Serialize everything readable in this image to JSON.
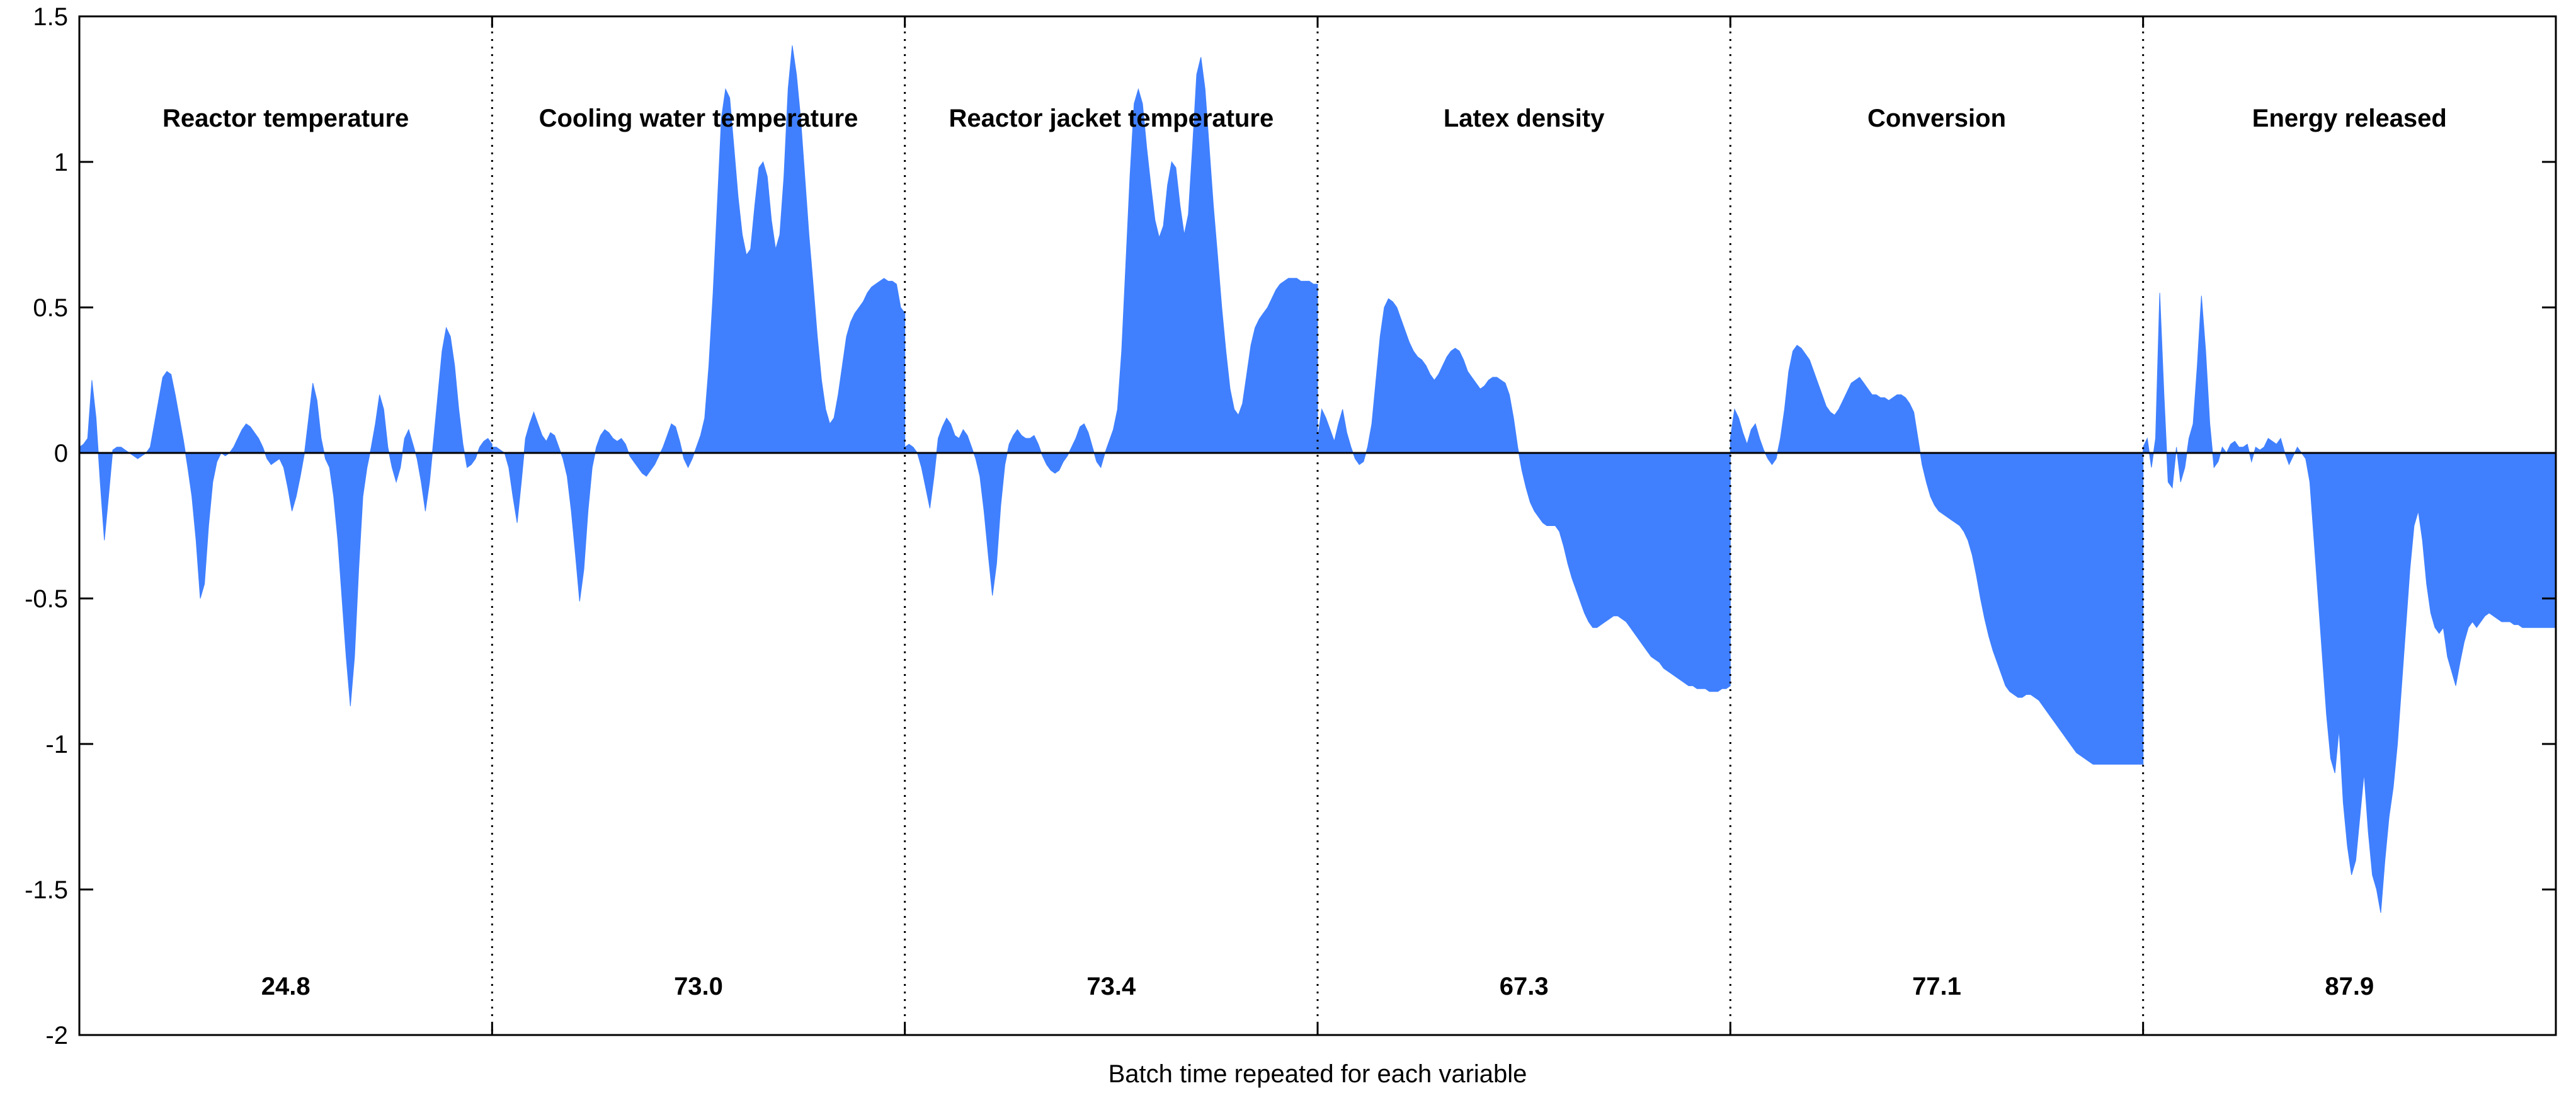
{
  "chart_data": {
    "type": "area",
    "title": "",
    "xlabel": "Batch time repeated for each variable",
    "ylabel": "",
    "ylim": [
      -2,
      1.5
    ],
    "yticks": [
      1.5,
      1,
      0.5,
      0,
      -0.5,
      -1,
      -1.5,
      -2
    ],
    "ytick_labels": [
      "1.5",
      "1",
      "0.5",
      "0",
      "-0.5",
      "-1",
      "-1.5",
      "-2"
    ],
    "grid": false,
    "fill_color": "#4080FF",
    "x_samples_per_panel": 100,
    "panels": [
      {
        "name": "Reactor temperature",
        "stat": "24.8",
        "values": [
          0.02,
          0.03,
          0.05,
          0.25,
          0.12,
          -0.1,
          -0.3,
          -0.15,
          0.01,
          0.02,
          0.02,
          0.01,
          0.0,
          -0.01,
          -0.02,
          -0.01,
          0.0,
          0.02,
          0.1,
          0.18,
          0.26,
          0.28,
          0.27,
          0.2,
          0.12,
          0.04,
          -0.05,
          -0.15,
          -0.3,
          -0.5,
          -0.45,
          -0.25,
          -0.1,
          -0.03,
          0.0,
          -0.01,
          0.0,
          0.02,
          0.05,
          0.08,
          0.1,
          0.09,
          0.07,
          0.05,
          0.02,
          -0.02,
          -0.04,
          -0.03,
          -0.02,
          -0.05,
          -0.12,
          -0.2,
          -0.15,
          -0.08,
          0.0,
          0.12,
          0.24,
          0.18,
          0.05,
          -0.02,
          -0.05,
          -0.15,
          -0.3,
          -0.5,
          -0.7,
          -0.87,
          -0.7,
          -0.4,
          -0.15,
          -0.05,
          0.02,
          0.1,
          0.2,
          0.15,
          0.02,
          -0.05,
          -0.1,
          -0.05,
          0.05,
          0.08,
          0.03,
          -0.02,
          -0.1,
          -0.2,
          -0.1,
          0.05,
          0.2,
          0.35,
          0.43,
          0.4,
          0.3,
          0.15,
          0.03,
          -0.05,
          -0.04,
          -0.02,
          0.02,
          0.04,
          0.05,
          0.03
        ]
      },
      {
        "name": "Cooling water temperature",
        "stat": "73.0",
        "values": [
          0.02,
          0.02,
          0.01,
          0.0,
          -0.05,
          -0.15,
          -0.24,
          -0.1,
          0.05,
          0.1,
          0.14,
          0.1,
          0.06,
          0.04,
          0.07,
          0.06,
          0.02,
          -0.02,
          -0.08,
          -0.2,
          -0.35,
          -0.51,
          -0.4,
          -0.2,
          -0.05,
          0.02,
          0.06,
          0.08,
          0.07,
          0.05,
          0.04,
          0.05,
          0.03,
          -0.01,
          -0.03,
          -0.05,
          -0.07,
          -0.08,
          -0.06,
          -0.04,
          -0.01,
          0.02,
          0.06,
          0.1,
          0.09,
          0.04,
          -0.02,
          -0.05,
          -0.02,
          0.02,
          0.06,
          0.12,
          0.3,
          0.55,
          0.85,
          1.15,
          1.25,
          1.22,
          1.05,
          0.88,
          0.75,
          0.68,
          0.7,
          0.85,
          0.98,
          1.0,
          0.95,
          0.8,
          0.7,
          0.75,
          0.95,
          1.25,
          1.4,
          1.3,
          1.15,
          0.95,
          0.75,
          0.58,
          0.4,
          0.25,
          0.15,
          0.1,
          0.12,
          0.2,
          0.3,
          0.4,
          0.45,
          0.48,
          0.5,
          0.52,
          0.55,
          0.57,
          0.58,
          0.59,
          0.6,
          0.59,
          0.59,
          0.58,
          0.5,
          0.48
        ]
      },
      {
        "name": "Reactor jacket temperature",
        "stat": "73.4",
        "values": [
          0.02,
          0.03,
          0.02,
          0.0,
          -0.05,
          -0.12,
          -0.19,
          -0.08,
          0.05,
          0.09,
          0.12,
          0.1,
          0.06,
          0.05,
          0.08,
          0.06,
          0.02,
          -0.02,
          -0.08,
          -0.2,
          -0.35,
          -0.49,
          -0.38,
          -0.18,
          -0.04,
          0.03,
          0.06,
          0.08,
          0.06,
          0.05,
          0.05,
          0.06,
          0.03,
          -0.01,
          -0.04,
          -0.06,
          -0.07,
          -0.06,
          -0.03,
          -0.01,
          0.02,
          0.05,
          0.09,
          0.1,
          0.07,
          0.02,
          -0.03,
          -0.05,
          0.0,
          0.04,
          0.08,
          0.15,
          0.35,
          0.65,
          0.95,
          1.2,
          1.25,
          1.2,
          1.05,
          0.92,
          0.8,
          0.74,
          0.78,
          0.92,
          1.0,
          0.98,
          0.85,
          0.75,
          0.82,
          1.05,
          1.3,
          1.36,
          1.25,
          1.05,
          0.85,
          0.68,
          0.5,
          0.35,
          0.22,
          0.15,
          0.13,
          0.17,
          0.27,
          0.37,
          0.43,
          0.46,
          0.48,
          0.5,
          0.53,
          0.56,
          0.58,
          0.59,
          0.6,
          0.6,
          0.6,
          0.59,
          0.59,
          0.59,
          0.58,
          0.58
        ]
      },
      {
        "name": "Latex density",
        "stat": "67.3",
        "values": [
          0.05,
          0.15,
          0.12,
          0.08,
          0.04,
          0.1,
          0.15,
          0.07,
          0.02,
          -0.02,
          -0.04,
          -0.03,
          0.02,
          0.1,
          0.25,
          0.4,
          0.5,
          0.53,
          0.52,
          0.5,
          0.46,
          0.42,
          0.38,
          0.35,
          0.33,
          0.32,
          0.3,
          0.27,
          0.25,
          0.27,
          0.3,
          0.33,
          0.35,
          0.36,
          0.35,
          0.32,
          0.28,
          0.26,
          0.24,
          0.22,
          0.23,
          0.25,
          0.26,
          0.26,
          0.25,
          0.24,
          0.2,
          0.12,
          0.02,
          -0.06,
          -0.12,
          -0.17,
          -0.2,
          -0.22,
          -0.24,
          -0.25,
          -0.25,
          -0.25,
          -0.27,
          -0.32,
          -0.38,
          -0.43,
          -0.47,
          -0.51,
          -0.55,
          -0.58,
          -0.6,
          -0.6,
          -0.59,
          -0.58,
          -0.57,
          -0.56,
          -0.56,
          -0.57,
          -0.58,
          -0.6,
          -0.62,
          -0.64,
          -0.66,
          -0.68,
          -0.7,
          -0.71,
          -0.72,
          -0.74,
          -0.75,
          -0.76,
          -0.77,
          -0.78,
          -0.79,
          -0.8,
          -0.8,
          -0.81,
          -0.81,
          -0.81,
          -0.82,
          -0.82,
          -0.82,
          -0.81,
          -0.81,
          -0.8
        ]
      },
      {
        "name": "Conversion",
        "stat": "77.1",
        "values": [
          0.05,
          0.15,
          0.12,
          0.07,
          0.03,
          0.08,
          0.1,
          0.05,
          0.01,
          -0.02,
          -0.04,
          -0.02,
          0.05,
          0.15,
          0.28,
          0.35,
          0.37,
          0.36,
          0.34,
          0.32,
          0.28,
          0.24,
          0.2,
          0.16,
          0.14,
          0.13,
          0.15,
          0.18,
          0.21,
          0.24,
          0.25,
          0.26,
          0.24,
          0.22,
          0.2,
          0.2,
          0.19,
          0.19,
          0.18,
          0.19,
          0.2,
          0.2,
          0.19,
          0.17,
          0.14,
          0.05,
          -0.04,
          -0.1,
          -0.15,
          -0.18,
          -0.2,
          -0.21,
          -0.22,
          -0.23,
          -0.24,
          -0.25,
          -0.27,
          -0.3,
          -0.35,
          -0.42,
          -0.5,
          -0.57,
          -0.63,
          -0.68,
          -0.72,
          -0.76,
          -0.8,
          -0.82,
          -0.83,
          -0.84,
          -0.84,
          -0.83,
          -0.83,
          -0.84,
          -0.85,
          -0.87,
          -0.89,
          -0.91,
          -0.93,
          -0.95,
          -0.97,
          -0.99,
          -1.01,
          -1.03,
          -1.04,
          -1.05,
          -1.06,
          -1.07,
          -1.07,
          -1.07,
          -1.07,
          -1.07,
          -1.07,
          -1.07,
          -1.07,
          -1.07,
          -1.07,
          -1.07,
          -1.07,
          -1.07
        ]
      },
      {
        "name": "Energy released",
        "stat": "87.9",
        "values": [
          0.02,
          0.05,
          -0.05,
          0.05,
          0.55,
          0.2,
          -0.1,
          -0.12,
          0.02,
          -0.1,
          -0.05,
          0.05,
          0.1,
          0.3,
          0.54,
          0.35,
          0.1,
          -0.05,
          -0.03,
          0.02,
          0.0,
          0.03,
          0.04,
          0.02,
          0.02,
          0.03,
          -0.03,
          0.02,
          0.01,
          0.02,
          0.05,
          0.04,
          0.03,
          0.05,
          0.0,
          -0.04,
          -0.01,
          0.02,
          0.0,
          -0.02,
          -0.1,
          -0.3,
          -0.5,
          -0.7,
          -0.9,
          -1.05,
          -1.1,
          -0.95,
          -1.2,
          -1.35,
          -1.45,
          -1.4,
          -1.25,
          -1.1,
          -1.3,
          -1.45,
          -1.5,
          -1.58,
          -1.4,
          -1.25,
          -1.15,
          -1.0,
          -0.8,
          -0.6,
          -0.4,
          -0.25,
          -0.2,
          -0.3,
          -0.45,
          -0.55,
          -0.6,
          -0.62,
          -0.6,
          -0.7,
          -0.75,
          -0.8,
          -0.72,
          -0.65,
          -0.6,
          -0.58,
          -0.6,
          -0.58,
          -0.56,
          -0.55,
          -0.56,
          -0.57,
          -0.58,
          -0.58,
          -0.58,
          -0.59,
          -0.59,
          -0.6,
          -0.6,
          -0.6,
          -0.6,
          -0.6,
          -0.6,
          -0.6,
          -0.6,
          -0.6
        ]
      }
    ]
  }
}
